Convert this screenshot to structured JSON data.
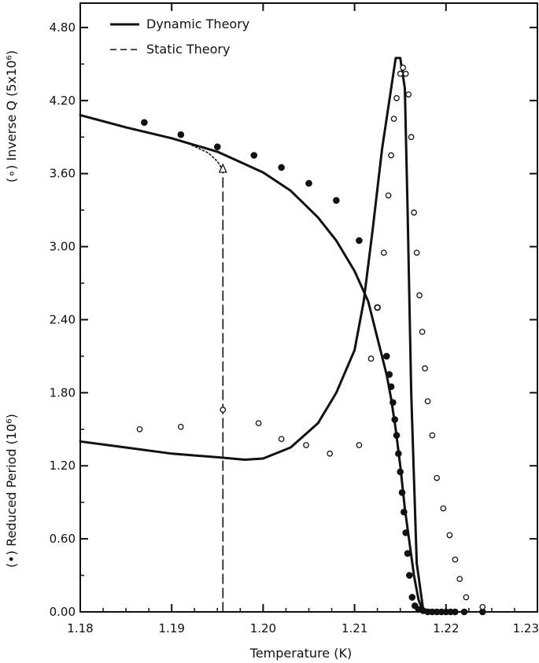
{
  "chart_data": {
    "type": "scatter",
    "title": "",
    "xlabel": "Temperature (K)",
    "ylabel_top": "(∘) Inverse Q (5x10⁶)",
    "ylabel_bottom": "(•) Reduced Period (10⁶)",
    "xlim": [
      1.18,
      1.23
    ],
    "ylim": [
      0.0,
      5.0
    ],
    "x_ticks": [
      1.18,
      1.19,
      1.2,
      1.21,
      1.22,
      1.23
    ],
    "x_tick_labels": [
      "1.18",
      "1.19",
      "1.20",
      "1.21",
      "1.22",
      "1.23"
    ],
    "y_ticks": [
      0.0,
      0.6,
      1.2,
      1.8,
      2.4,
      3.0,
      3.6,
      4.2,
      4.8
    ],
    "y_tick_labels": [
      "0.00",
      "0.60",
      "1.20",
      "1.80",
      "2.40",
      "3.00",
      "3.60",
      "4.20",
      "4.80"
    ],
    "grid": false,
    "legend_placement": "top-left",
    "legend": [
      {
        "label": "Dynamic Theory",
        "style": "solid"
      },
      {
        "label": "Static Theory",
        "style": "dashed"
      }
    ],
    "series": [
      {
        "name": "Dynamic Theory",
        "kind": "line",
        "style": "solid",
        "x": [
          1.18,
          1.185,
          1.19,
          1.195,
          1.2,
          1.203,
          1.206,
          1.208,
          1.21,
          1.2115,
          1.2125,
          1.2135,
          1.214,
          1.2145,
          1.215,
          1.2155,
          1.2165,
          1.217,
          1.2175
        ],
        "y": [
          4.08,
          3.98,
          3.89,
          3.78,
          3.61,
          3.46,
          3.24,
          3.05,
          2.8,
          2.55,
          2.25,
          1.95,
          1.75,
          1.5,
          1.2,
          0.85,
          0.3,
          0.1,
          0.0
        ]
      },
      {
        "name": "Dynamic Theory",
        "kind": "line",
        "style": "solid",
        "x": [
          1.18,
          1.185,
          1.19,
          1.195,
          1.198,
          1.2,
          1.203,
          1.206,
          1.208,
          1.21,
          1.211,
          1.212,
          1.213,
          1.214,
          1.2145,
          1.215,
          1.2155,
          1.2158,
          1.2162,
          1.2168,
          1.2175,
          1.22
        ],
        "y": [
          1.4,
          1.35,
          1.3,
          1.27,
          1.25,
          1.26,
          1.35,
          1.55,
          1.8,
          2.15,
          2.55,
          3.15,
          3.8,
          4.3,
          4.55,
          4.55,
          4.3,
          3.3,
          1.8,
          0.4,
          0.02,
          0.0
        ]
      },
      {
        "name": "Static Theory",
        "kind": "line",
        "style": "dotted",
        "x": [
          1.186,
          1.188,
          1.19,
          1.192,
          1.194,
          1.195,
          1.1955
        ],
        "y": [
          3.96,
          3.93,
          3.89,
          3.84,
          3.77,
          3.7,
          3.64
        ]
      },
      {
        "name": "Static Theory",
        "kind": "line",
        "style": "dashed",
        "x": [
          1.1956,
          1.1956
        ],
        "y": [
          0.0,
          3.64
        ]
      },
      {
        "name": "Reduced Period",
        "kind": "marker",
        "marker": "filled-circle",
        "x": [
          1.187,
          1.191,
          1.195,
          1.199,
          1.202,
          1.205,
          1.208,
          1.2105,
          1.2125,
          1.2135,
          1.2138,
          1.214,
          1.2142,
          1.2144,
          1.2146,
          1.2148,
          1.215,
          1.2152,
          1.2154,
          1.2156,
          1.2158,
          1.216,
          1.2163,
          1.2166,
          1.217,
          1.2175,
          1.218,
          1.2185,
          1.219,
          1.2195,
          1.22,
          1.2205,
          1.221,
          1.222,
          1.224
        ],
        "y": [
          4.02,
          3.92,
          3.82,
          3.75,
          3.65,
          3.52,
          3.38,
          3.05,
          2.5,
          2.1,
          1.95,
          1.85,
          1.72,
          1.58,
          1.45,
          1.3,
          1.15,
          0.98,
          0.82,
          0.65,
          0.48,
          0.3,
          0.12,
          0.05,
          0.02,
          0.01,
          0.0,
          0.0,
          0.0,
          0.0,
          0.0,
          0.0,
          0.0,
          0.0,
          0.0
        ]
      },
      {
        "name": "Inverse Q",
        "kind": "marker",
        "marker": "open-circle",
        "x": [
          1.1865,
          1.191,
          1.1956,
          1.1995,
          1.202,
          1.2047,
          1.2073,
          1.2105,
          1.2118,
          1.2125,
          1.2132,
          1.2137,
          1.214,
          1.2143,
          1.2146,
          1.215,
          1.2153,
          1.2156,
          1.2159,
          1.2162,
          1.2165,
          1.2168,
          1.2171,
          1.2174,
          1.2177,
          1.218,
          1.2185,
          1.219,
          1.2197,
          1.2204,
          1.221,
          1.2215,
          1.2222,
          1.224
        ],
        "y": [
          1.5,
          1.52,
          1.66,
          1.55,
          1.42,
          1.37,
          1.3,
          1.37,
          2.08,
          2.5,
          2.95,
          3.42,
          3.75,
          4.05,
          4.22,
          4.42,
          4.47,
          4.42,
          4.25,
          3.9,
          3.28,
          2.95,
          2.6,
          2.3,
          2.0,
          1.73,
          1.45,
          1.1,
          0.85,
          0.63,
          0.43,
          0.27,
          0.12,
          0.04
        ]
      },
      {
        "name": "Inverse Q",
        "kind": "marker",
        "marker": "open-triangle",
        "x": [
          1.1956
        ],
        "y": [
          3.64
        ]
      }
    ]
  }
}
